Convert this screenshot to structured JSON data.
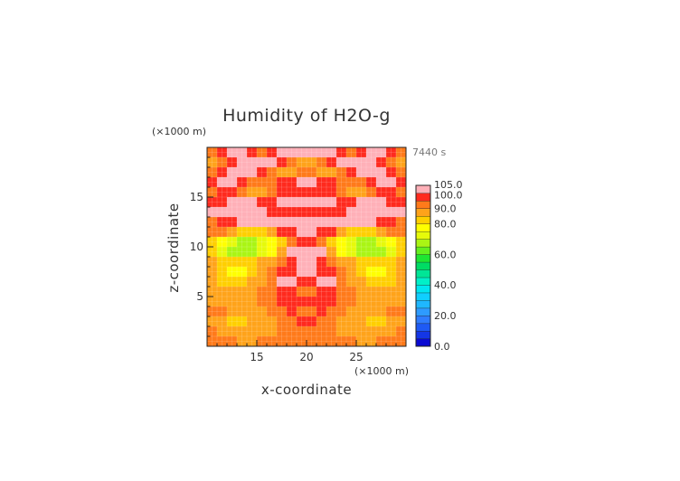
{
  "chart_data": {
    "type": "heatmap",
    "title": "Humidity of H2O-g",
    "time_label": "7440 s",
    "xlabel": "x-coordinate",
    "ylabel": "z-coordinate",
    "x_unit": "(×1000 m)",
    "y_unit": "(×1000 m)",
    "xlim": [
      10,
      30
    ],
    "ylim": [
      0,
      20
    ],
    "x_ticks": [
      "15",
      "20",
      "25"
    ],
    "x_tick_values": [
      15,
      20,
      25
    ],
    "y_ticks": [
      "5",
      "10",
      "15"
    ],
    "y_tick_values": [
      5,
      10,
      15
    ],
    "colorbar": {
      "labels": [
        "0.0",
        "20.0",
        "40.0",
        "60.0",
        "80.0",
        "90.0",
        "100.0",
        "105.0"
      ],
      "label_values": [
        0,
        20,
        40,
        60,
        80,
        90,
        100,
        105
      ],
      "range": [
        0,
        105
      ],
      "bands": [
        {
          "from": 0,
          "to": 5,
          "color": "#0a0ad2"
        },
        {
          "from": 5,
          "to": 10,
          "color": "#1436e6"
        },
        {
          "from": 10,
          "to": 15,
          "color": "#1e5af5"
        },
        {
          "from": 15,
          "to": 20,
          "color": "#2f7cff"
        },
        {
          "from": 20,
          "to": 25,
          "color": "#2e9bff"
        },
        {
          "from": 25,
          "to": 30,
          "color": "#1fb7ff"
        },
        {
          "from": 30,
          "to": 35,
          "color": "#10cfff"
        },
        {
          "from": 35,
          "to": 40,
          "color": "#00e6f0"
        },
        {
          "from": 40,
          "to": 45,
          "color": "#00f0c8"
        },
        {
          "from": 45,
          "to": 50,
          "color": "#00e696"
        },
        {
          "from": 50,
          "to": 55,
          "color": "#00dc64"
        },
        {
          "from": 55,
          "to": 60,
          "color": "#1ee632"
        },
        {
          "from": 60,
          "to": 65,
          "color": "#64f01e"
        },
        {
          "from": 65,
          "to": 70,
          "color": "#aaf514"
        },
        {
          "from": 70,
          "to": 75,
          "color": "#e6fa0a"
        },
        {
          "from": 75,
          "to": 80,
          "color": "#ffff00"
        },
        {
          "from": 80,
          "to": 85,
          "color": "#ffcf00"
        },
        {
          "from": 85,
          "to": 90,
          "color": "#ffa31a"
        },
        {
          "from": 90,
          "to": 95,
          "color": "#ff7a1a"
        },
        {
          "from": 95,
          "to": 100,
          "color": "#ff2a1e"
        },
        {
          "from": 100,
          "to": 105,
          "color": "#ffb0b8"
        }
      ]
    },
    "field": {
      "nx": 20,
      "ny": 20,
      "x_range": [
        10,
        30
      ],
      "y_range": [
        0,
        20
      ],
      "row_order": "top-to-bottom",
      "values": [
        [
          91,
          97,
          101,
          102,
          97,
          93,
          95,
          101,
          102,
          102,
          102,
          102,
          101,
          95,
          93,
          97,
          102,
          101,
          97,
          91
        ],
        [
          88,
          93,
          97,
          101,
          102,
          102,
          101,
          97,
          93,
          85,
          85,
          93,
          97,
          101,
          102,
          102,
          101,
          97,
          93,
          88
        ],
        [
          92,
          96,
          101,
          102,
          102,
          97,
          92,
          88,
          85,
          93,
          93,
          85,
          88,
          92,
          97,
          102,
          102,
          101,
          96,
          92
        ],
        [
          95,
          101,
          102,
          97,
          93,
          90,
          93,
          97,
          99,
          101,
          101,
          99,
          97,
          93,
          90,
          93,
          97,
          102,
          101,
          95
        ],
        [
          90,
          95,
          97,
          92,
          88,
          85,
          91,
          95,
          97,
          98,
          98,
          97,
          95,
          91,
          85,
          88,
          92,
          97,
          95,
          90
        ],
        [
          96,
          99,
          101,
          102,
          101,
          97,
          95,
          101,
          102,
          102,
          102,
          102,
          101,
          95,
          97,
          101,
          102,
          101,
          99,
          96
        ],
        [
          101,
          102,
          102,
          102,
          102,
          101,
          99,
          97,
          96,
          96,
          96,
          96,
          97,
          99,
          101,
          102,
          102,
          102,
          102,
          101
        ],
        [
          93,
          97,
          99,
          101,
          102,
          102,
          101,
          101,
          101,
          102,
          102,
          101,
          101,
          101,
          102,
          102,
          101,
          99,
          97,
          93
        ],
        [
          92,
          90,
          86,
          83,
          80,
          83,
          88,
          95,
          99,
          101,
          101,
          99,
          95,
          88,
          83,
          80,
          83,
          86,
          90,
          92
        ],
        [
          82,
          78,
          73,
          69,
          68,
          71,
          76,
          83,
          90,
          97,
          97,
          90,
          83,
          76,
          71,
          68,
          69,
          73,
          78,
          82
        ],
        [
          80,
          74,
          68,
          67,
          69,
          72,
          77,
          86,
          101,
          102,
          102,
          101,
          86,
          77,
          72,
          69,
          67,
          68,
          74,
          80
        ],
        [
          86,
          83,
          80,
          82,
          84,
          86,
          89,
          93,
          97,
          102,
          102,
          97,
          93,
          89,
          86,
          84,
          82,
          80,
          83,
          86
        ],
        [
          85,
          80,
          76,
          79,
          84,
          86,
          90,
          96,
          99,
          102,
          102,
          99,
          96,
          90,
          86,
          84,
          79,
          76,
          80,
          85
        ],
        [
          87,
          83,
          80,
          84,
          86,
          88,
          91,
          100,
          102,
          96,
          96,
          102,
          100,
          91,
          88,
          86,
          84,
          80,
          83,
          87
        ],
        [
          88,
          86,
          85,
          86,
          88,
          90,
          92,
          95,
          98,
          91,
          91,
          98,
          95,
          92,
          90,
          88,
          86,
          85,
          86,
          88
        ],
        [
          89,
          87,
          85,
          86,
          89,
          92,
          93,
          95,
          96,
          99,
          99,
          96,
          95,
          93,
          92,
          89,
          86,
          85,
          87,
          89
        ],
        [
          92,
          91,
          89,
          87,
          85,
          88,
          91,
          93,
          95,
          94,
          94,
          95,
          93,
          91,
          88,
          85,
          87,
          89,
          91,
          92
        ],
        [
          88,
          86,
          84,
          82,
          85,
          87,
          88,
          90,
          91,
          95,
          95,
          91,
          90,
          88,
          87,
          85,
          82,
          84,
          86,
          88
        ],
        [
          90,
          88,
          86,
          85,
          87,
          88,
          89,
          90,
          90,
          92,
          92,
          90,
          90,
          89,
          88,
          87,
          85,
          86,
          88,
          90
        ],
        [
          92,
          91,
          90,
          89,
          89,
          90,
          90,
          91,
          91,
          91,
          91,
          91,
          91,
          90,
          90,
          89,
          89,
          90,
          91,
          92
        ]
      ]
    },
    "grid": true
  }
}
